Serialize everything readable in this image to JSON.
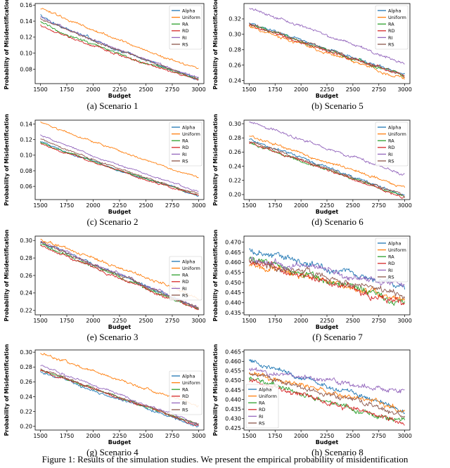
{
  "series_names": [
    "Alpha",
    "Uniform",
    "RA",
    "RD",
    "RI",
    "RS"
  ],
  "colors": {
    "Alpha": "#1f77b4",
    "Uniform": "#ff7f0e",
    "RA": "#2ca02c",
    "RD": "#d62728",
    "RI": "#9467bd",
    "RS": "#8c564b"
  },
  "figure_caption": "Figure 1: Results of the simulation studies. We present the empirical probability of misidentification",
  "chart_data": [
    {
      "type": "line",
      "id": "s1",
      "caption": "(a) Scenario 1",
      "xlabel": "Budget",
      "ylabel": "Probability of Misidentification",
      "xlim": [
        1450,
        3050
      ],
      "ylim": [
        0.062,
        0.162
      ],
      "xticks": [
        1500,
        1750,
        2000,
        2250,
        2500,
        2750,
        3000
      ],
      "xtick_labels": [
        "1500",
        "1750",
        "2000",
        "2250",
        "2500",
        "2750",
        "3000"
      ],
      "yticks": [
        0.08,
        0.1,
        0.12,
        0.14,
        0.16
      ],
      "ytick_labels": [
        "0.08",
        "0.10",
        "0.12",
        "0.14",
        "0.16"
      ],
      "legend": "top-right",
      "series": [
        {
          "name": "Alpha",
          "start": 0.148,
          "end": 0.068,
          "noise": 0.002,
          "shape": 0.85
        },
        {
          "name": "Uniform",
          "start": 0.156,
          "end": 0.079,
          "noise": 0.0015,
          "shape": 0.95
        },
        {
          "name": "RA",
          "start": 0.14,
          "end": 0.067,
          "noise": 0.0015,
          "shape": 0.85
        },
        {
          "name": "RD",
          "start": 0.136,
          "end": 0.066,
          "noise": 0.0015,
          "shape": 0.85
        },
        {
          "name": "RI",
          "start": 0.146,
          "end": 0.069,
          "noise": 0.0015,
          "shape": 0.9
        },
        {
          "name": "RS",
          "start": 0.144,
          "end": 0.068,
          "noise": 0.0015,
          "shape": 0.9
        }
      ]
    },
    {
      "type": "line",
      "id": "s5",
      "caption": "(b) Scenario 5",
      "xlabel": "Budget",
      "ylabel": "Probability of Misidentification",
      "xlim": [
        1450,
        3050
      ],
      "ylim": [
        0.236,
        0.34
      ],
      "xticks": [
        1500,
        1750,
        2000,
        2250,
        2500,
        2750,
        3000
      ],
      "xtick_labels": [
        "1500",
        "1750",
        "2000",
        "2250",
        "2500",
        "2750",
        "3000"
      ],
      "yticks": [
        0.24,
        0.26,
        0.28,
        0.3,
        0.32
      ],
      "ytick_labels": [
        "0.24",
        "0.26",
        "0.28",
        "0.30",
        "0.32"
      ],
      "legend": "top-right",
      "series": [
        {
          "name": "Alpha",
          "start": 0.315,
          "end": 0.248,
          "noise": 0.002,
          "shape": 1.0
        },
        {
          "name": "Uniform",
          "start": 0.31,
          "end": 0.242,
          "noise": 0.002,
          "shape": 1.0
        },
        {
          "name": "RA",
          "start": 0.313,
          "end": 0.246,
          "noise": 0.002,
          "shape": 1.0
        },
        {
          "name": "RD",
          "start": 0.312,
          "end": 0.246,
          "noise": 0.002,
          "shape": 1.0
        },
        {
          "name": "RI",
          "start": 0.334,
          "end": 0.263,
          "noise": 0.002,
          "shape": 1.0
        },
        {
          "name": "RS",
          "start": 0.314,
          "end": 0.247,
          "noise": 0.002,
          "shape": 1.0
        }
      ]
    },
    {
      "type": "line",
      "id": "s2",
      "caption": "(c) Scenario 2",
      "xlabel": "Budget",
      "ylabel": "Probability of Misidentification",
      "xlim": [
        1450,
        3050
      ],
      "ylim": [
        0.043,
        0.145
      ],
      "xticks": [
        1500,
        1750,
        2000,
        2250,
        2500,
        2750,
        3000
      ],
      "xtick_labels": [
        "1500",
        "1750",
        "2000",
        "2250",
        "2500",
        "2750",
        "3000"
      ],
      "yticks": [
        0.06,
        0.08,
        0.1,
        0.12,
        0.14
      ],
      "ytick_labels": [
        "0.06",
        "0.08",
        "0.10",
        "0.12",
        "0.14"
      ],
      "legend": "top-right",
      "series": [
        {
          "name": "Alpha",
          "start": 0.118,
          "end": 0.048,
          "noise": 0.0012,
          "shape": 0.9
        },
        {
          "name": "Uniform",
          "start": 0.143,
          "end": 0.07,
          "noise": 0.0012,
          "shape": 0.95
        },
        {
          "name": "RA",
          "start": 0.117,
          "end": 0.049,
          "noise": 0.0012,
          "shape": 0.9
        },
        {
          "name": "RD",
          "start": 0.116,
          "end": 0.048,
          "noise": 0.0012,
          "shape": 0.9
        },
        {
          "name": "RI",
          "start": 0.127,
          "end": 0.053,
          "noise": 0.0012,
          "shape": 0.9
        },
        {
          "name": "RS",
          "start": 0.121,
          "end": 0.05,
          "noise": 0.0012,
          "shape": 0.9
        }
      ]
    },
    {
      "type": "line",
      "id": "s6",
      "caption": "(d) Scenario 6",
      "xlabel": "Budget",
      "ylabel": "Probability of Misidentification",
      "xlim": [
        1450,
        3050
      ],
      "ylim": [
        0.193,
        0.305
      ],
      "xticks": [
        1500,
        1750,
        2000,
        2250,
        2500,
        2750,
        3000
      ],
      "xtick_labels": [
        "1500",
        "1750",
        "2000",
        "2250",
        "2500",
        "2750",
        "3000"
      ],
      "yticks": [
        0.2,
        0.22,
        0.24,
        0.26,
        0.28,
        0.3
      ],
      "ytick_labels": [
        "0.20",
        "0.22",
        "0.24",
        "0.26",
        "0.28",
        "0.30"
      ],
      "legend": "top-right",
      "series": [
        {
          "name": "Alpha",
          "start": 0.278,
          "end": 0.199,
          "noise": 0.002,
          "shape": 1.0
        },
        {
          "name": "Uniform",
          "start": 0.283,
          "end": 0.209,
          "noise": 0.002,
          "shape": 1.0
        },
        {
          "name": "RA",
          "start": 0.273,
          "end": 0.197,
          "noise": 0.002,
          "shape": 1.0
        },
        {
          "name": "RD",
          "start": 0.273,
          "end": 0.196,
          "noise": 0.002,
          "shape": 1.0
        },
        {
          "name": "RI",
          "start": 0.303,
          "end": 0.228,
          "noise": 0.002,
          "shape": 1.0
        },
        {
          "name": "RS",
          "start": 0.276,
          "end": 0.198,
          "noise": 0.002,
          "shape": 1.0
        }
      ]
    },
    {
      "type": "line",
      "id": "s3",
      "caption": "(e) Scenario 3",
      "xlabel": "Budget",
      "ylabel": "Probability of Misidentification",
      "xlim": [
        1450,
        3050
      ],
      "ylim": [
        0.215,
        0.305
      ],
      "xticks": [
        1500,
        1750,
        2000,
        2250,
        2500,
        2750,
        3000
      ],
      "xtick_labels": [
        "1500",
        "1750",
        "2000",
        "2250",
        "2500",
        "2750",
        "3000"
      ],
      "yticks": [
        0.22,
        0.24,
        0.26,
        0.28,
        0.3
      ],
      "ytick_labels": [
        "0.22",
        "0.24",
        "0.26",
        "0.28",
        "0.30"
      ],
      "legend": "middle-right",
      "series": [
        {
          "name": "Alpha",
          "start": 0.298,
          "end": 0.222,
          "noise": 0.0018,
          "shape": 1.0
        },
        {
          "name": "Uniform",
          "start": 0.302,
          "end": 0.235,
          "noise": 0.0018,
          "shape": 1.0
        },
        {
          "name": "RA",
          "start": 0.296,
          "end": 0.221,
          "noise": 0.0018,
          "shape": 1.0
        },
        {
          "name": "RD",
          "start": 0.294,
          "end": 0.22,
          "noise": 0.0018,
          "shape": 1.0
        },
        {
          "name": "RI",
          "start": 0.299,
          "end": 0.223,
          "noise": 0.0018,
          "shape": 1.0
        },
        {
          "name": "RS",
          "start": 0.298,
          "end": 0.222,
          "noise": 0.0018,
          "shape": 1.0
        }
      ]
    },
    {
      "type": "line",
      "id": "s7",
      "caption": "(f) Scenario 7",
      "xlabel": "Budget",
      "ylabel": "Probability of Misidentification",
      "xlim": [
        1450,
        3050
      ],
      "ylim": [
        0.434,
        0.473
      ],
      "xticks": [
        1500,
        1750,
        2000,
        2250,
        2500,
        2750,
        3000
      ],
      "xtick_labels": [
        "1500",
        "1750",
        "2000",
        "2250",
        "2500",
        "2750",
        "3000"
      ],
      "yticks": [
        0.435,
        0.44,
        0.445,
        0.45,
        0.455,
        0.46,
        0.465,
        0.47
      ],
      "ytick_labels": [
        "0.435",
        "0.440",
        "0.445",
        "0.450",
        "0.455",
        "0.460",
        "0.465",
        "0.470"
      ],
      "legend": "top-right",
      "series": [
        {
          "name": "Alpha",
          "start": 0.466,
          "end": 0.448,
          "noise": 0.0018,
          "shape": 1.0
        },
        {
          "name": "Uniform",
          "start": 0.459,
          "end": 0.442,
          "noise": 0.0018,
          "shape": 1.0
        },
        {
          "name": "RA",
          "start": 0.462,
          "end": 0.44,
          "noise": 0.0018,
          "shape": 1.0
        },
        {
          "name": "RD",
          "start": 0.461,
          "end": 0.439,
          "noise": 0.0018,
          "shape": 1.0
        },
        {
          "name": "RI",
          "start": 0.462,
          "end": 0.449,
          "noise": 0.0018,
          "shape": 1.0
        },
        {
          "name": "RS",
          "start": 0.461,
          "end": 0.444,
          "noise": 0.0018,
          "shape": 1.0
        }
      ]
    },
    {
      "type": "line",
      "id": "s4",
      "caption": "(g) Scenario 4",
      "xlabel": "Budget",
      "ylabel": "Probability of Misidentification",
      "xlim": [
        1450,
        3050
      ],
      "ylim": [
        0.195,
        0.303
      ],
      "xticks": [
        1500,
        1750,
        2000,
        2250,
        2500,
        2750,
        3000
      ],
      "xtick_labels": [
        "1500",
        "1750",
        "2000",
        "2250",
        "2500",
        "2750",
        "3000"
      ],
      "yticks": [
        0.2,
        0.22,
        0.24,
        0.26,
        0.28,
        0.3
      ],
      "ytick_labels": [
        "0.20",
        "0.22",
        "0.24",
        "0.26",
        "0.28",
        "0.30"
      ],
      "legend": "middle-right",
      "series": [
        {
          "name": "Alpha",
          "start": 0.274,
          "end": 0.199,
          "noise": 0.0018,
          "shape": 1.0
        },
        {
          "name": "Uniform",
          "start": 0.298,
          "end": 0.228,
          "noise": 0.0018,
          "shape": 1.0
        },
        {
          "name": "RA",
          "start": 0.276,
          "end": 0.201,
          "noise": 0.0018,
          "shape": 1.0
        },
        {
          "name": "RD",
          "start": 0.275,
          "end": 0.201,
          "noise": 0.0018,
          "shape": 1.0
        },
        {
          "name": "RI",
          "start": 0.282,
          "end": 0.203,
          "noise": 0.0018,
          "shape": 1.0
        },
        {
          "name": "RS",
          "start": 0.277,
          "end": 0.202,
          "noise": 0.0018,
          "shape": 1.0
        }
      ]
    },
    {
      "type": "line",
      "id": "s8",
      "caption": "(h) Scenario 8",
      "xlabel": "Budget",
      "ylabel": "Probability of Misidentification",
      "xlim": [
        1450,
        3050
      ],
      "ylim": [
        0.424,
        0.466
      ],
      "xticks": [
        1500,
        1750,
        2000,
        2250,
        2500,
        2750,
        3000
      ],
      "xtick_labels": [
        "1500",
        "1750",
        "2000",
        "2250",
        "2500",
        "2750",
        "3000"
      ],
      "yticks": [
        0.425,
        0.43,
        0.435,
        0.44,
        0.445,
        0.45,
        0.455,
        0.46,
        0.465
      ],
      "ytick_labels": [
        "0.425",
        "0.430",
        "0.435",
        "0.440",
        "0.445",
        "0.450",
        "0.455",
        "0.460",
        "0.465"
      ],
      "legend": "bottom-left",
      "series": [
        {
          "name": "Alpha",
          "start": 0.461,
          "end": 0.434,
          "noise": 0.0015,
          "shape": 1.0
        },
        {
          "name": "Uniform",
          "start": 0.454,
          "end": 0.435,
          "noise": 0.0015,
          "shape": 1.0
        },
        {
          "name": "RA",
          "start": 0.451,
          "end": 0.428,
          "noise": 0.0015,
          "shape": 1.0
        },
        {
          "name": "RD",
          "start": 0.45,
          "end": 0.427,
          "noise": 0.0015,
          "shape": 1.0
        },
        {
          "name": "RI",
          "start": 0.456,
          "end": 0.444,
          "noise": 0.0015,
          "shape": 1.0
        },
        {
          "name": "RS",
          "start": 0.454,
          "end": 0.432,
          "noise": 0.0015,
          "shape": 1.0
        }
      ]
    }
  ]
}
